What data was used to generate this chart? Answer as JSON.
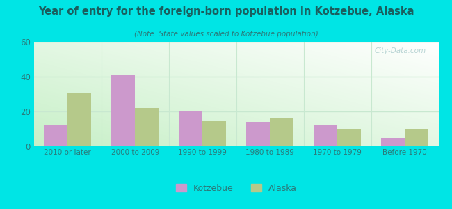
{
  "title": "Year of entry for the foreign-born population in Kotzebue, Alaska",
  "subtitle": "(Note: State values scaled to Kotzebue population)",
  "categories": [
    "2010 or later",
    "2000 to 2009",
    "1990 to 1999",
    "1980 to 1989",
    "1970 to 1979",
    "Before 1970"
  ],
  "kotzebue_values": [
    12,
    41,
    20,
    14,
    12,
    5
  ],
  "alaska_values": [
    31,
    22,
    15,
    16,
    10,
    10
  ],
  "kotzebue_color": "#cc99cc",
  "alaska_color": "#b5c98a",
  "ylim": [
    0,
    60
  ],
  "yticks": [
    0,
    20,
    40,
    60
  ],
  "bg_outer": "#00e5e5",
  "legend_kotzebue": "Kotzebue",
  "legend_alaska": "Alaska",
  "bar_width": 0.35,
  "title_color": "#1a5f5f",
  "subtitle_color": "#2a7a7a",
  "tick_color": "#2a7a7a",
  "grid_color": "#c8e8d0",
  "watermark": "City-Data.com"
}
